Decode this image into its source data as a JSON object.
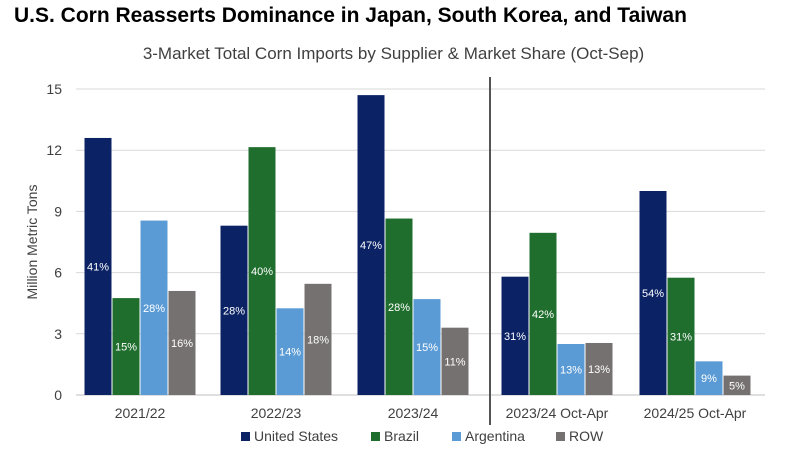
{
  "chart_data": {
    "type": "bar",
    "title": "U.S. Corn Reasserts Dominance in Japan, South Korea, and Taiwan",
    "subtitle": "3-Market Total Corn Imports by Supplier & Market Share (Oct-Sep)",
    "ylabel": "Million Metric Tons",
    "xlabel": "",
    "ylim": [
      0,
      15
    ],
    "yticks": [
      "0",
      "3",
      "6",
      "9",
      "12",
      "15"
    ],
    "grid": true,
    "legend_position": "bottom",
    "categories": [
      "2021/22",
      "2022/23",
      "2023/24",
      "2023/24 Oct-Apr",
      "2024/25 Oct-Apr"
    ],
    "divider_after_category_index": 2,
    "series": [
      {
        "name": "United States",
        "color": "#0b2265",
        "values": [
          12.6,
          8.3,
          14.7,
          5.8,
          10.0
        ],
        "labels": [
          "41%",
          "28%",
          "47%",
          "31%",
          "54%"
        ]
      },
      {
        "name": "Brazil",
        "color": "#1f6e2d",
        "values": [
          4.75,
          12.15,
          8.65,
          7.95,
          5.75
        ],
        "labels": [
          "15%",
          "40%",
          "28%",
          "42%",
          "31%"
        ]
      },
      {
        "name": "Argentina",
        "color": "#5b9bd5",
        "values": [
          8.55,
          4.25,
          4.7,
          2.5,
          1.65
        ],
        "labels": [
          "28%",
          "14%",
          "15%",
          "13%",
          "9%"
        ]
      },
      {
        "name": "ROW",
        "color": "#767171",
        "values": [
          5.1,
          5.45,
          3.3,
          2.55,
          0.95
        ],
        "labels": [
          "16%",
          "18%",
          "11%",
          "13%",
          "5%"
        ]
      }
    ]
  }
}
